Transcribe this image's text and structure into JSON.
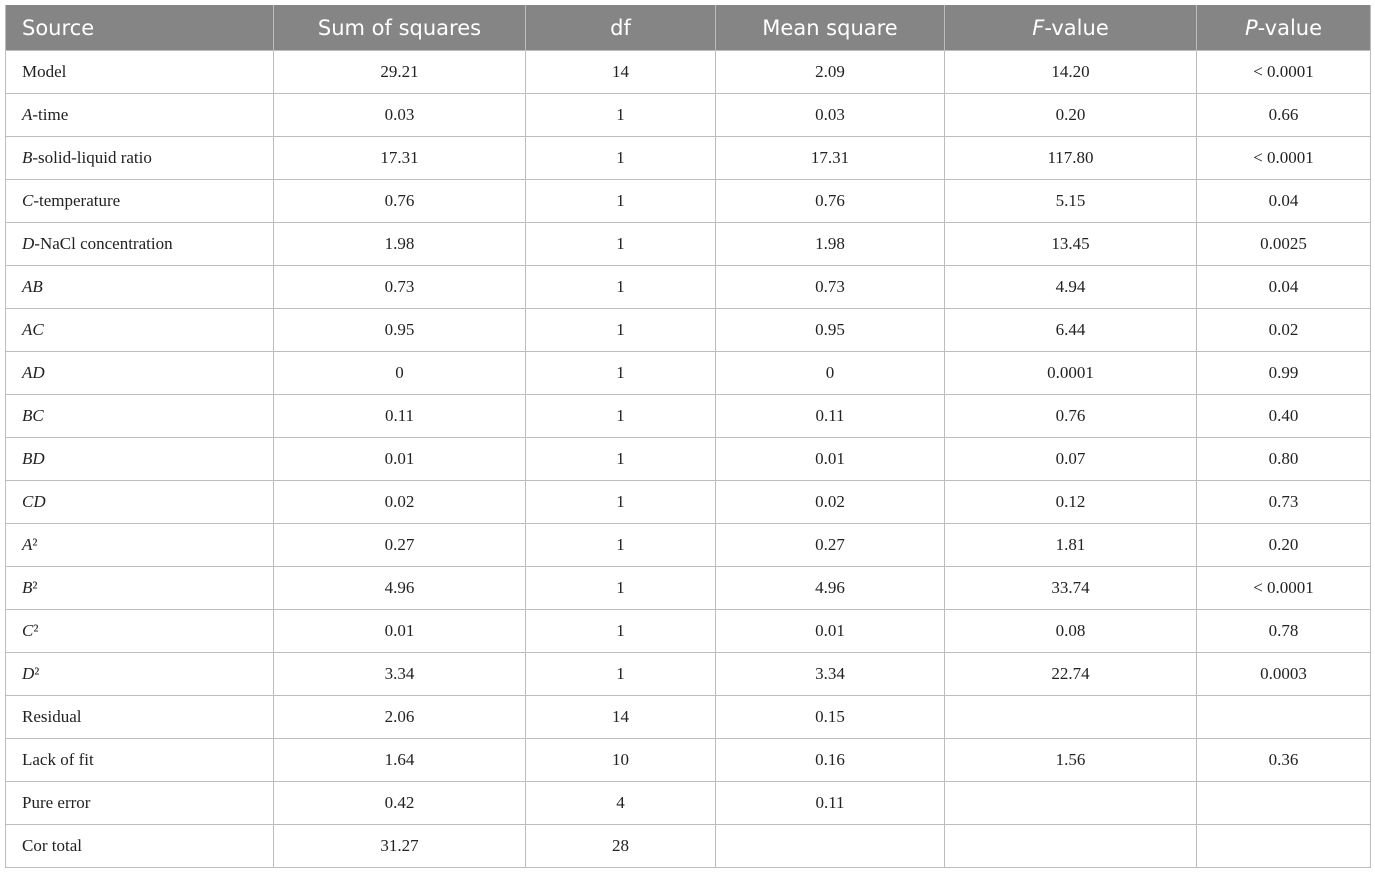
{
  "table": {
    "header": [
      "Source",
      "Sum of squares",
      "df",
      "Mean square",
      [
        {
          "text": "F",
          "italic": true
        },
        {
          "text": "-value"
        }
      ],
      [
        {
          "text": "P",
          "italic": true
        },
        {
          "text": "-value"
        }
      ]
    ],
    "rows": [
      [
        "Model",
        "29.21",
        "14",
        "2.09",
        "14.20",
        "< 0.0001"
      ],
      [
        [
          {
            "text": "A",
            "italic": true
          },
          {
            "text": "-time"
          }
        ],
        "0.03",
        "1",
        "0.03",
        "0.20",
        "0.66"
      ],
      [
        [
          {
            "text": "B",
            "italic": true
          },
          {
            "text": "-solid-liquid ratio"
          }
        ],
        "17.31",
        "1",
        "17.31",
        "117.80",
        "< 0.0001"
      ],
      [
        [
          {
            "text": "C",
            "italic": true
          },
          {
            "text": "-temperature"
          }
        ],
        "0.76",
        "1",
        "0.76",
        "5.15",
        "0.04"
      ],
      [
        [
          {
            "text": "D",
            "italic": true
          },
          {
            "text": "-NaCl concentration"
          }
        ],
        "1.98",
        "1",
        "1.98",
        "13.45",
        "0.0025"
      ],
      [
        [
          {
            "text": "AB",
            "italic": true
          }
        ],
        "0.73",
        "1",
        "0.73",
        "4.94",
        "0.04"
      ],
      [
        [
          {
            "text": "AC",
            "italic": true
          }
        ],
        "0.95",
        "1",
        "0.95",
        "6.44",
        "0.02"
      ],
      [
        [
          {
            "text": "AD",
            "italic": true
          }
        ],
        "0",
        "1",
        "0",
        "0.0001",
        "0.99"
      ],
      [
        [
          {
            "text": "BC",
            "italic": true
          }
        ],
        "0.11",
        "1",
        "0.11",
        "0.76",
        "0.40"
      ],
      [
        [
          {
            "text": "BD",
            "italic": true
          }
        ],
        "0.01",
        "1",
        "0.01",
        "0.07",
        "0.80"
      ],
      [
        [
          {
            "text": "CD",
            "italic": true
          }
        ],
        "0.02",
        "1",
        "0.02",
        "0.12",
        "0.73"
      ],
      [
        [
          {
            "text": "A",
            "italic": true
          },
          {
            "text": "²"
          }
        ],
        "0.27",
        "1",
        "0.27",
        "1.81",
        "0.20"
      ],
      [
        [
          {
            "text": "B",
            "italic": true
          },
          {
            "text": "²"
          }
        ],
        "4.96",
        "1",
        "4.96",
        "33.74",
        "< 0.0001"
      ],
      [
        [
          {
            "text": "C",
            "italic": true
          },
          {
            "text": "²"
          }
        ],
        "0.01",
        "1",
        "0.01",
        "0.08",
        "0.78"
      ],
      [
        [
          {
            "text": "D",
            "italic": true
          },
          {
            "text": "²"
          }
        ],
        "3.34",
        "1",
        "3.34",
        "22.74",
        "0.0003"
      ],
      [
        "Residual",
        "2.06",
        "14",
        "0.15",
        null,
        null
      ],
      [
        "Lack of fit",
        "1.64",
        "10",
        "0.16",
        "1.56",
        "0.36"
      ],
      [
        "Pure error",
        "0.42",
        "4",
        "0.11",
        null,
        null
      ],
      [
        "Cor total",
        "31.27",
        "28",
        null,
        null,
        null
      ]
    ]
  }
}
